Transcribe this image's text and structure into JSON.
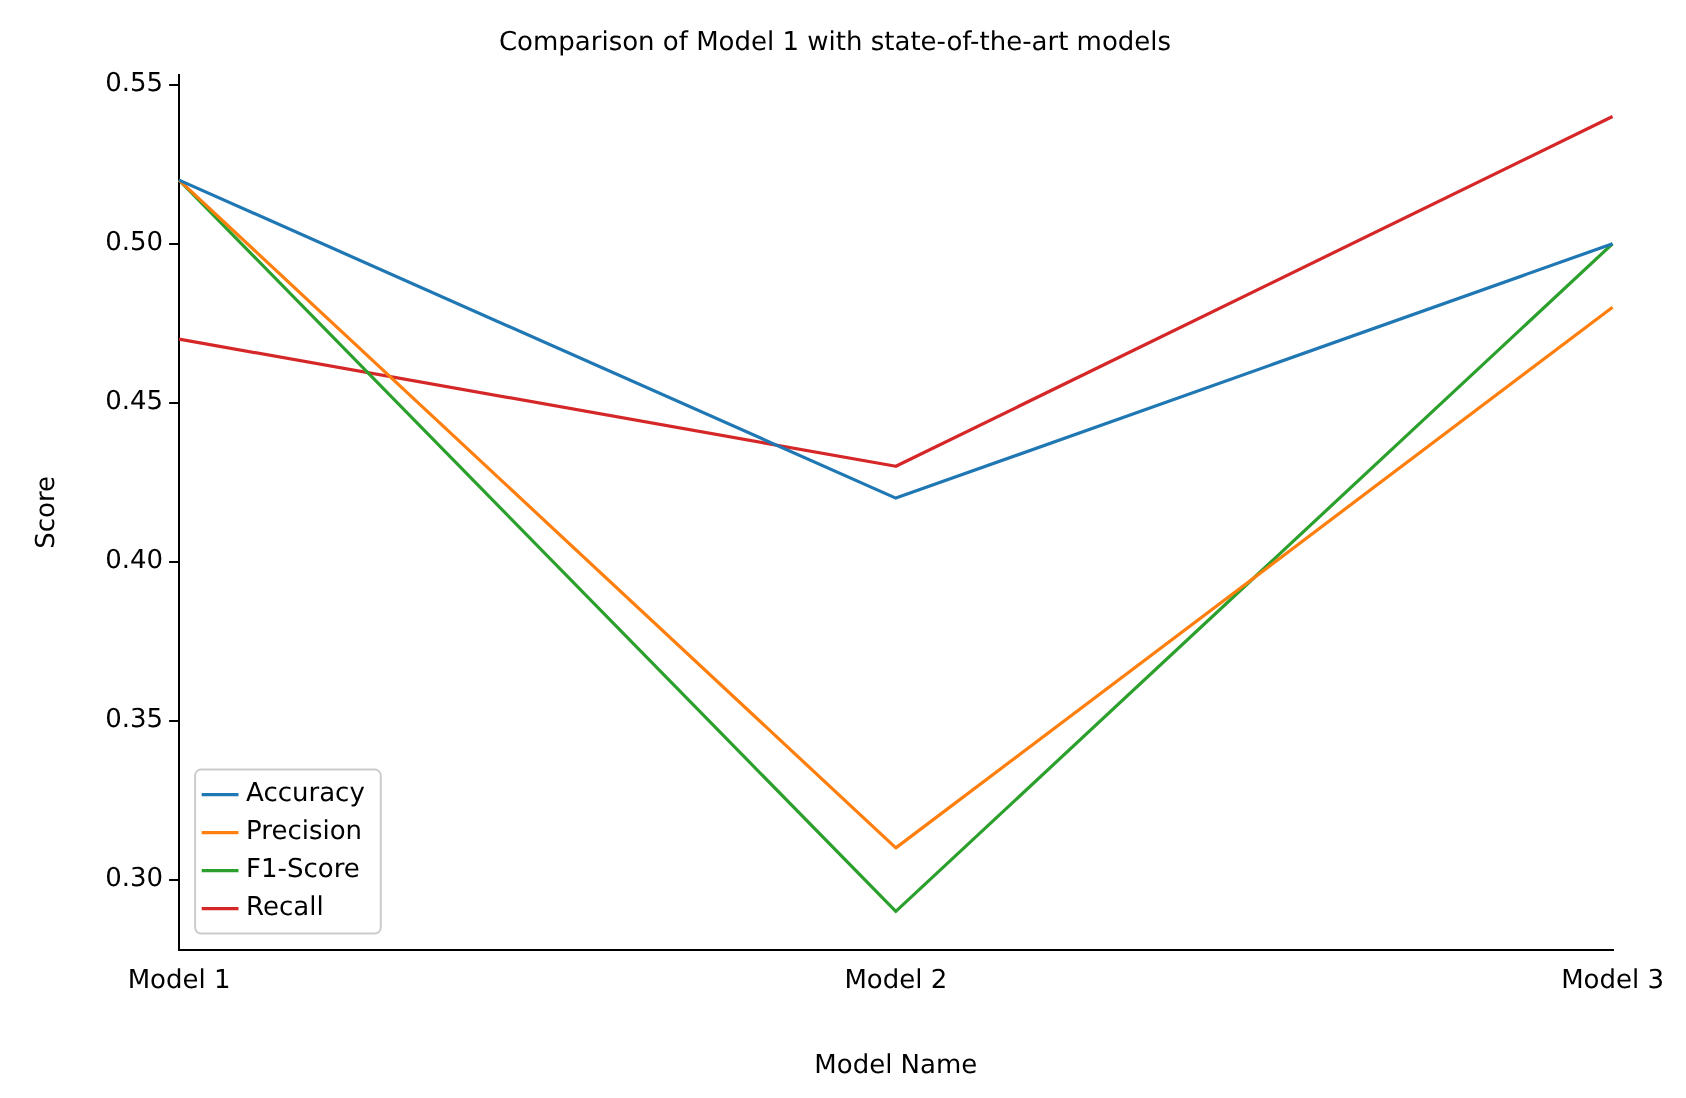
{
  "chart_data": {
    "type": "line",
    "title": "Comparison of Model 1 with state-of-the-art models",
    "xlabel": "Model Name",
    "ylabel": "Score",
    "categories": [
      "Model 1",
      "Model 2",
      "Model 3"
    ],
    "series": [
      {
        "name": "Accuracy",
        "color": "#1f77b4",
        "values": [
          0.52,
          0.42,
          0.5
        ]
      },
      {
        "name": "Precision",
        "color": "#ff7f0e",
        "values": [
          0.52,
          0.31,
          0.48
        ]
      },
      {
        "name": "F1-Score",
        "color": "#2ca02c",
        "values": [
          0.52,
          0.29,
          0.5
        ]
      },
      {
        "name": "Recall",
        "color": "#d62728",
        "values": [
          0.47,
          0.43,
          0.54
        ]
      }
    ],
    "ylim": [
      0.278,
      0.553
    ],
    "yticks": [
      {
        "value": 0.3,
        "label": "0.30"
      },
      {
        "value": 0.35,
        "label": "0.35"
      },
      {
        "value": 0.4,
        "label": "0.40"
      },
      {
        "value": 0.45,
        "label": "0.45"
      },
      {
        "value": 0.5,
        "label": "0.50"
      },
      {
        "value": 0.55,
        "label": "0.55"
      }
    ],
    "grid": false,
    "legend": "bottom left",
    "marker": "none",
    "line_style": "solid"
  }
}
